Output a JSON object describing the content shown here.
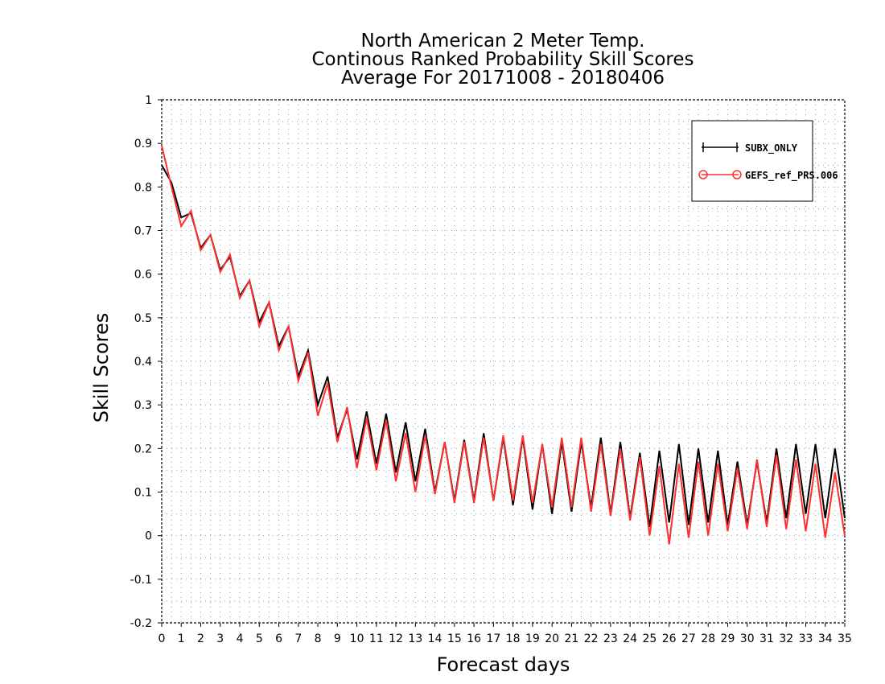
{
  "chart_data": {
    "type": "line",
    "title": [
      "North American 2 Meter Temp.",
      "Continous Ranked Probability Skill Scores",
      "Average For 20171008 - 20180406"
    ],
    "xlabel": "Forecast days",
    "ylabel": "Skill Scores",
    "xlim": [
      0,
      35
    ],
    "ylim": [
      -0.2,
      1
    ],
    "xticks": [
      0,
      1,
      2,
      3,
      4,
      5,
      6,
      7,
      8,
      9,
      10,
      11,
      12,
      13,
      14,
      15,
      16,
      17,
      18,
      19,
      20,
      21,
      22,
      23,
      24,
      25,
      26,
      27,
      28,
      29,
      30,
      31,
      32,
      33,
      34,
      35
    ],
    "yticks": [
      -0.2,
      -0.1,
      0,
      0.1,
      0.2,
      0.3,
      0.4,
      0.5,
      0.6,
      0.7,
      0.8,
      0.9,
      1
    ],
    "ytick_labels": [
      "-0.2",
      "-0.1",
      "0",
      "0.1",
      "0.2",
      "0.3",
      "0.4",
      "0.5",
      "0.6",
      "0.7",
      "0.8",
      "0.9",
      "1"
    ],
    "grid": true,
    "legend_position": "top-right",
    "x": [
      0,
      0.5,
      1,
      1.5,
      2,
      2.5,
      3,
      3.5,
      4,
      4.5,
      5,
      5.5,
      6,
      6.5,
      7,
      7.5,
      8,
      8.5,
      9,
      9.5,
      10,
      10.5,
      11,
      11.5,
      12,
      12.5,
      13,
      13.5,
      14,
      14.5,
      15,
      15.5,
      16,
      16.5,
      17,
      17.5,
      18,
      18.5,
      19,
      19.5,
      20,
      20.5,
      21,
      21.5,
      22,
      22.5,
      23,
      23.5,
      24,
      24.5,
      25,
      25.5,
      26,
      26.5,
      27,
      27.5,
      28,
      28.5,
      29,
      29.5,
      30,
      30.5,
      31,
      31.5,
      32,
      32.5,
      33,
      33.5,
      34,
      34.5,
      35
    ],
    "series": [
      {
        "name": "SUBX_ONLY",
        "color": "#000000",
        "marker": "plus",
        "values": [
          0.85,
          0.81,
          0.73,
          0.74,
          0.66,
          0.69,
          0.61,
          0.64,
          0.55,
          0.585,
          0.49,
          0.535,
          0.435,
          0.48,
          0.365,
          0.425,
          0.3,
          0.365,
          0.225,
          0.29,
          0.175,
          0.285,
          0.165,
          0.28,
          0.145,
          0.26,
          0.125,
          0.245,
          0.1,
          0.215,
          0.08,
          0.22,
          0.08,
          0.235,
          0.08,
          0.225,
          0.07,
          0.225,
          0.06,
          0.21,
          0.05,
          0.215,
          0.055,
          0.215,
          0.065,
          0.225,
          0.05,
          0.215,
          0.04,
          0.19,
          0.02,
          0.195,
          0.03,
          0.21,
          0.025,
          0.2,
          0.03,
          0.195,
          0.025,
          0.17,
          0.025,
          0.17,
          0.03,
          0.2,
          0.04,
          0.21,
          0.05,
          0.21,
          0.04,
          0.2,
          0.04
        ]
      },
      {
        "name": "GEFS_ref_PRS.006",
        "color": "#ff3030",
        "marker": "circle",
        "values": [
          0.895,
          0.8,
          0.71,
          0.745,
          0.655,
          0.69,
          0.605,
          0.645,
          0.545,
          0.585,
          0.48,
          0.535,
          0.425,
          0.48,
          0.355,
          0.42,
          0.275,
          0.35,
          0.215,
          0.295,
          0.155,
          0.27,
          0.15,
          0.265,
          0.125,
          0.235,
          0.1,
          0.23,
          0.095,
          0.215,
          0.075,
          0.215,
          0.075,
          0.225,
          0.08,
          0.23,
          0.08,
          0.23,
          0.075,
          0.21,
          0.065,
          0.225,
          0.065,
          0.225,
          0.055,
          0.21,
          0.045,
          0.2,
          0.035,
          0.18,
          0.0,
          0.16,
          -0.02,
          0.165,
          -0.005,
          0.17,
          0.0,
          0.165,
          0.01,
          0.155,
          0.015,
          0.175,
          0.02,
          0.185,
          0.015,
          0.175,
          0.01,
          0.165,
          -0.005,
          0.145,
          0.0
        ]
      }
    ]
  },
  "legend": {
    "items": [
      {
        "label": "SUBX_ONLY",
        "color": "#000000"
      },
      {
        "label": "GEFS_ref_PRS.006",
        "color": "#ff3030"
      }
    ]
  }
}
